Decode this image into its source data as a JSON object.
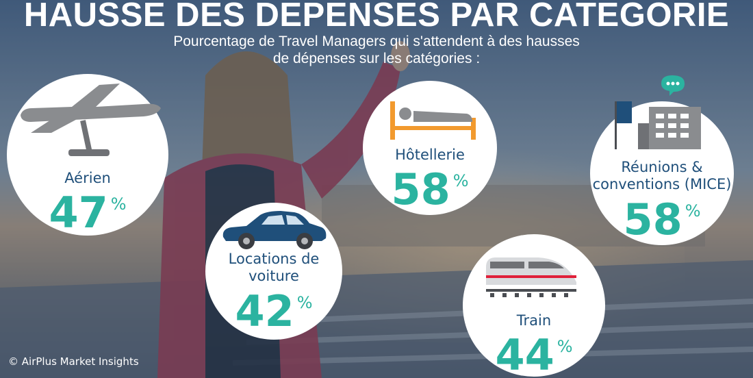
{
  "title": "HAUSSE DES DEPENSES PAR CATEGORIE",
  "subtitle_line1": "Pourcentage de Travel Managers qui s'attendent à des hausses",
  "subtitle_line2": "de dépenses sur les catégories :",
  "colors": {
    "label": "#1f4f7a",
    "percent": "#2bb3a0",
    "icon_gray": "#8a8c8f",
    "car": "#1f4f7a",
    "bed": "#f29a2e",
    "train_red": "#e0203a",
    "chat": "#2bb3a0"
  },
  "categories": [
    {
      "id": "aerien",
      "label": "Aérien",
      "value": "47",
      "unit": "%",
      "icon": "airplane-icon"
    },
    {
      "id": "voiture",
      "label_line1": "Locations de",
      "label_line2": "voiture",
      "value": "42",
      "unit": "%",
      "icon": "car-icon"
    },
    {
      "id": "hotellerie",
      "label": "Hôtellerie",
      "value": "58",
      "unit": "%",
      "icon": "bed-icon"
    },
    {
      "id": "train",
      "label": "Train",
      "value": "44",
      "unit": "%",
      "icon": "train-icon"
    },
    {
      "id": "mice",
      "label_line1": "Réunions &",
      "label_line2": "conventions (MICE)",
      "value": "58",
      "unit": "%",
      "icon": "meeting-building-icon"
    }
  ],
  "copyright": "© AirPlus Market Insights"
}
